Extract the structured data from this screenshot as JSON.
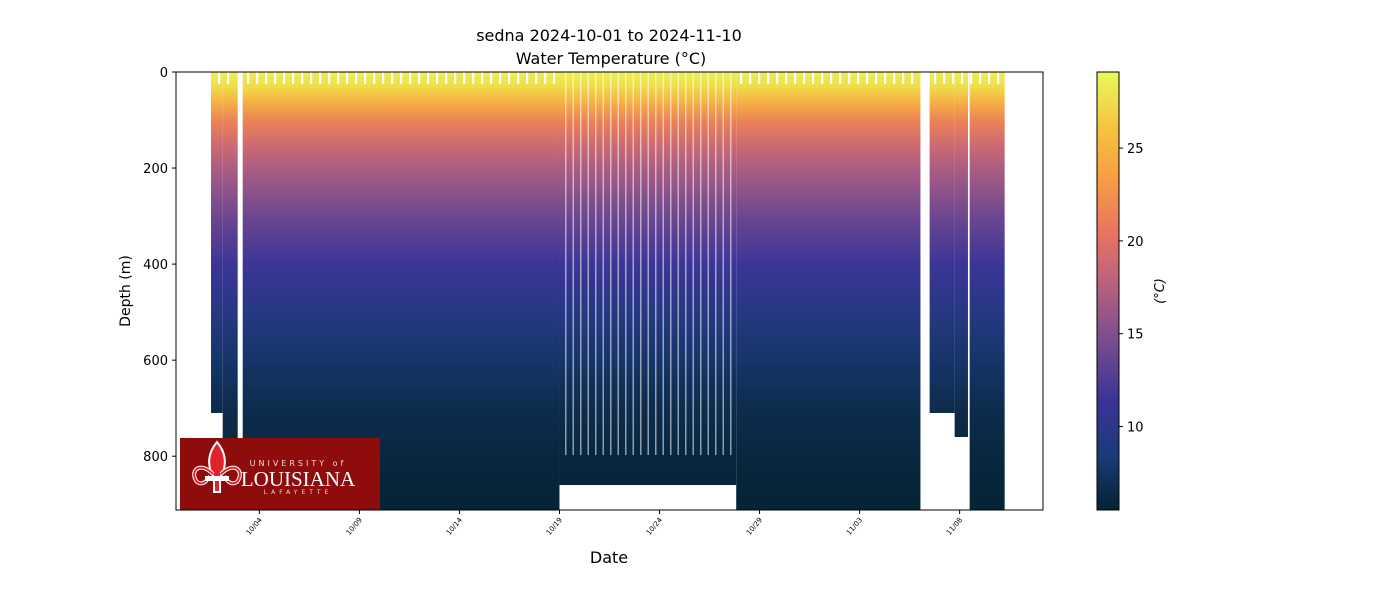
{
  "chart_data": {
    "type": "heatmap",
    "title": "sedna 2024-10-01 to 2024-11-10",
    "subtitle": "Water Temperature (°C)",
    "xlabel": "Date",
    "ylabel": "Depth (m)",
    "colorbar_label": "(°C)",
    "colormap": "thermal",
    "colormap_stops": [
      "#042333",
      "#1b3a78",
      "#3a3497",
      "#744a8f",
      "#b15f82",
      "#e57362",
      "#f89a45",
      "#f5c440",
      "#e8fa5b"
    ],
    "clim": [
      5.5,
      29.1
    ],
    "colorbar_ticks": [
      10,
      15,
      20,
      25
    ],
    "xlim": [
      "2024-09-29T20:00",
      "2024-11-12T04:00"
    ],
    "ylim": [
      912,
      0
    ],
    "y_inverted": true,
    "yticks": [
      0,
      200,
      400,
      600,
      800
    ],
    "xticks": [
      {
        "date": "2024-10-04",
        "label": "10/04"
      },
      {
        "date": "2024-10-09",
        "label": "10/09"
      },
      {
        "date": "2024-10-14",
        "label": "10/14"
      },
      {
        "date": "2024-10-19",
        "label": "10/19"
      },
      {
        "date": "2024-10-24",
        "label": "10/24"
      },
      {
        "date": "2024-10-29",
        "label": "10/29"
      },
      {
        "date": "2024-11-03",
        "label": "11/03"
      },
      {
        "date": "2024-11-08",
        "label": "11/08"
      }
    ],
    "grid": false,
    "temperature_profile": {
      "depth_m": [
        0,
        30,
        60,
        100,
        150,
        200,
        300,
        400,
        500,
        600,
        700,
        800,
        900
      ],
      "temp_c": [
        28.5,
        27.5,
        25,
        21.5,
        19,
        17,
        14,
        11.5,
        9.5,
        7.8,
        6.6,
        6.0,
        5.6
      ]
    },
    "profile_segments": [
      {
        "start": "2024-10-01T14:00",
        "end": "2024-10-02T04:00",
        "max_depth_m": 710
      },
      {
        "start": "2024-10-02T04:00",
        "end": "2024-10-02T22:00",
        "max_depth_m": 912
      },
      {
        "start": "2024-10-03T04:00",
        "end": "2024-10-19T00:00",
        "max_depth_m": 912
      },
      {
        "start": "2024-10-19T00:00",
        "end": "2024-10-27T20:00",
        "max_depth_m": 860
      },
      {
        "start": "2024-10-27T20:00",
        "end": "2024-11-06T01:00",
        "max_depth_m": 912
      },
      {
        "start": "2024-11-06T12:00",
        "end": "2024-11-07T18:00",
        "max_depth_m": 710
      },
      {
        "start": "2024-11-07T18:00",
        "end": "2024-11-08T10:00",
        "max_depth_m": 760
      },
      {
        "start": "2024-11-08T12:00",
        "end": "2024-11-10T06:00",
        "max_depth_m": 912
      }
    ]
  },
  "logo": {
    "line1": "UNIVERSITY of",
    "line2": "LOUISIANA",
    "line3": "LAFAYETTE",
    "color": "#8f0c0c"
  }
}
